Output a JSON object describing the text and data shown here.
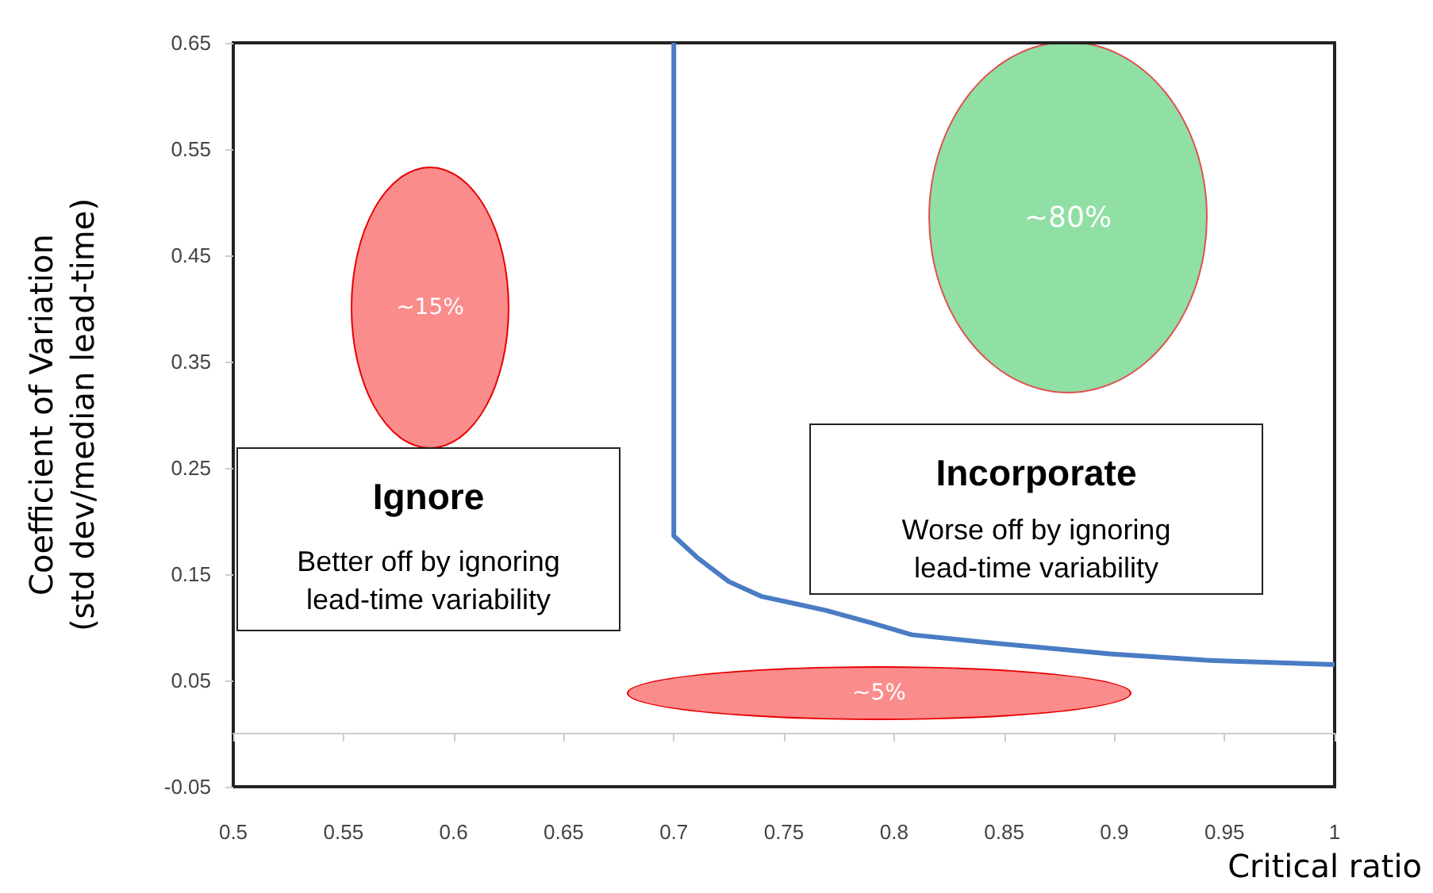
{
  "chart_data": {
    "type": "line",
    "xlabel": "Critical ratio",
    "ylabel": "Coefficient of Variation\n(std dev/median lead-time)",
    "series": [
      {
        "color": "#4a7cc4",
        "x": [
          0.7,
          0.7,
          0.711,
          0.725,
          0.74,
          0.769,
          0.79,
          0.808,
          0.841,
          0.898,
          0.942,
          1.0
        ],
        "values": [
          0.65,
          0.186,
          0.165,
          0.143,
          0.129,
          0.116,
          0.104,
          0.093,
          0.086,
          0.075,
          0.069,
          0.065
        ]
      }
    ],
    "marker": "none",
    "xlim": [
      0.5,
      1
    ],
    "xticks": [
      0.5,
      0.55,
      0.6,
      0.65,
      0.7,
      0.75,
      0.8,
      0.85,
      0.9,
      0.95,
      1
    ],
    "ylim": [
      -0.05,
      0.65
    ],
    "yticks": [
      -0.05,
      0.05,
      0.15,
      0.25,
      0.35,
      0.45,
      0.55,
      0.65
    ],
    "annotations": [
      "~15%",
      "~80%",
      "~5%",
      "Ignore",
      "Better off by ignoring lead-time variability",
      "Incorporate",
      "Worse off by ignoring lead-time variability"
    ]
  }
}
